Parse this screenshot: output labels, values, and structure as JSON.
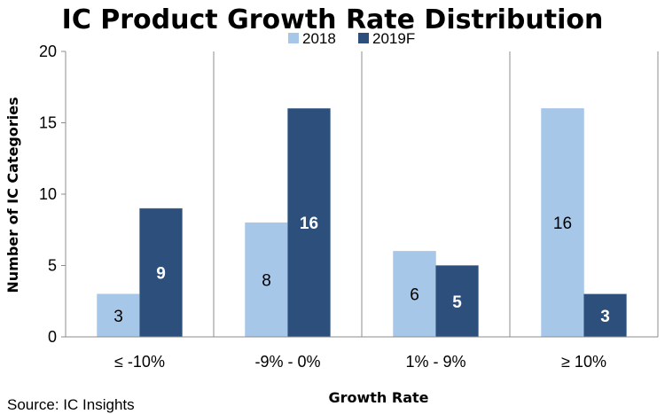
{
  "chart_data": {
    "type": "bar",
    "title": "IC Product Growth Rate Distribution",
    "xlabel": "Growth Rate",
    "ylabel": "Number of IC Categories",
    "categories": [
      "≤ -10%",
      "-9% - 0%",
      "1% - 9%",
      "≥ 10%"
    ],
    "series": [
      {
        "name": "2018",
        "values": [
          3,
          8,
          6,
          16
        ],
        "color": "#a7c7e9"
      },
      {
        "name": "2019F",
        "values": [
          9,
          16,
          5,
          3
        ],
        "color": "#2d4f7c"
      }
    ],
    "ylim": [
      0,
      20
    ],
    "yticks": [
      "0",
      "5",
      "10",
      "15",
      "20"
    ],
    "data_labels": [
      [
        "3",
        "8",
        "6",
        "16"
      ],
      [
        "9",
        "16",
        "5",
        "3"
      ]
    ],
    "grid": "vertical-separators",
    "legend_position": "top-center",
    "source": "Source:  IC Insights"
  },
  "colors": {
    "grid": "#8c8c8c",
    "axis": "#8c8c8c",
    "bar_outline": "#5b7ea8"
  }
}
